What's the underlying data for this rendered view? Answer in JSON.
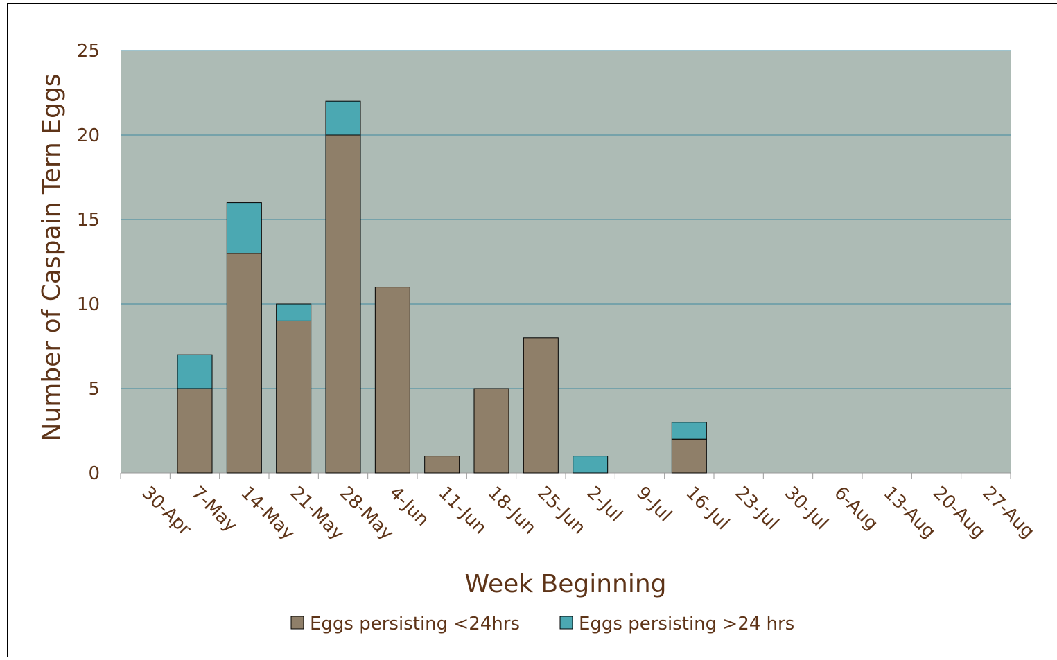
{
  "chart_data": {
    "type": "stacked-bar",
    "x_label": "Week Beginning",
    "y_label": "Number of Caspain Tern Eggs",
    "categories": [
      "30-Apr",
      "7-May",
      "14-May",
      "21-May",
      "28-May",
      "4-Jun",
      "11-Jun",
      "18-Jun",
      "25-Jun",
      "2-Jul",
      "9-Jul",
      "16-Jul",
      "23-Jul",
      "30-Jul",
      "6-Aug",
      "13-Aug",
      "20-Aug",
      "27-Aug"
    ],
    "series": [
      {
        "name": "Eggs persisting <24hrs",
        "color": "#8f7f69",
        "values": [
          0,
          5,
          13,
          9,
          20,
          11,
          1,
          5,
          8,
          0,
          0,
          2,
          0,
          0,
          0,
          0,
          0,
          0
        ]
      },
      {
        "name": "Eggs persisting >24 hrs",
        "color": "#4ba8b2",
        "values": [
          0,
          2,
          3,
          1,
          2,
          0,
          0,
          0,
          0,
          1,
          0,
          1,
          0,
          0,
          0,
          0,
          0,
          0
        ]
      }
    ],
    "ylim": [
      0,
      25
    ],
    "yticks": [
      0,
      5,
      10,
      15,
      20,
      25
    ],
    "grid": true,
    "legend": "bottom"
  }
}
